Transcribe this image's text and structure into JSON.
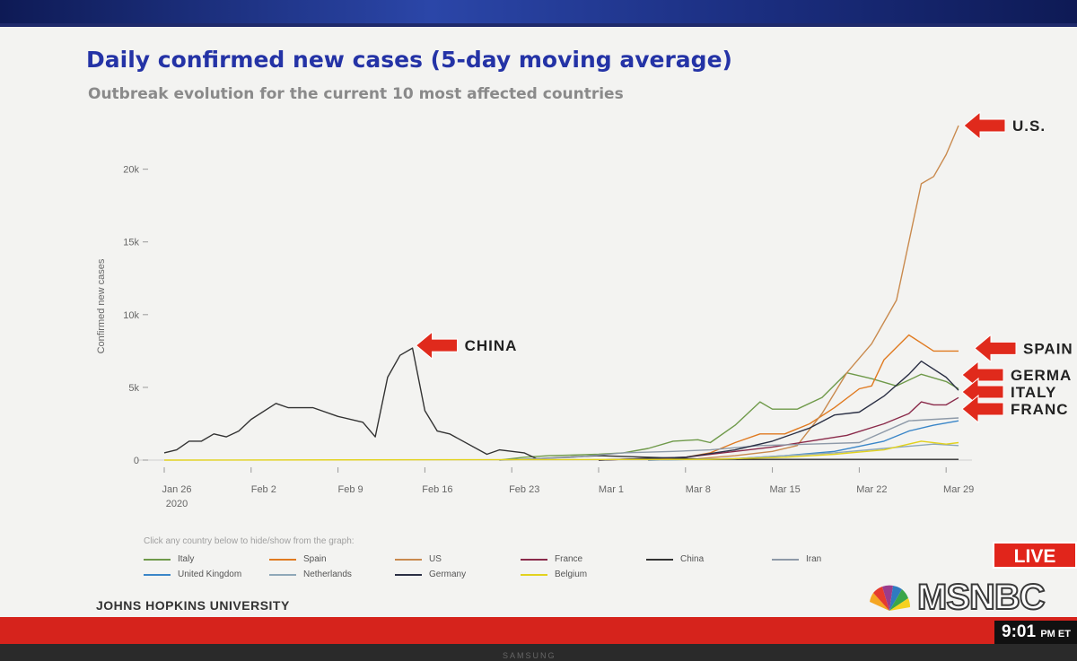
{
  "title": "Daily confirmed new cases (5-day moving average)",
  "subtitle": "Outbreak evolution for the current 10 most affected countries",
  "legend_hint": "Click any country below to hide/show from the graph:",
  "source": "JOHNS HOPKINS UNIVERSITY",
  "overlay": {
    "live": "LIVE",
    "network": "MSNBC",
    "clock_time": "9:01",
    "clock_suffix": "PM ET",
    "tv_brand": "SAMSUNG"
  },
  "annotations": [
    {
      "label": "U.S.",
      "series": "US"
    },
    {
      "label": "CHINA",
      "series": "China"
    },
    {
      "label": "SPAIN",
      "series": "Spain"
    },
    {
      "label": "GERMA",
      "series": "Germany"
    },
    {
      "label": "ITALY",
      "series": "Italy"
    },
    {
      "label": "FRANC",
      "series": "France"
    }
  ],
  "colors": {
    "title": "#2433a6",
    "subtitle": "#8a8a8a",
    "arrow": "#e02a1c",
    "live_bg": "#e1251b"
  },
  "chart_data": {
    "type": "line",
    "title": "Daily confirmed new cases (5-day moving average)",
    "subtitle": "Outbreak evolution for the current 10 most affected countries",
    "ylabel": "Confirmed new cases",
    "xlabel": "",
    "x_ticks": [
      {
        "date": "2020-01-26",
        "label": "Jan 26",
        "sublabel": "2020"
      },
      {
        "date": "2020-02-02",
        "label": "Feb 2",
        "sublabel": ""
      },
      {
        "date": "2020-02-09",
        "label": "Feb 9",
        "sublabel": ""
      },
      {
        "date": "2020-02-16",
        "label": "Feb 16",
        "sublabel": ""
      },
      {
        "date": "2020-02-23",
        "label": "Feb 23",
        "sublabel": ""
      },
      {
        "date": "2020-03-01",
        "label": "Mar 1",
        "sublabel": ""
      },
      {
        "date": "2020-03-08",
        "label": "Mar 8",
        "sublabel": ""
      },
      {
        "date": "2020-03-15",
        "label": "Mar 15",
        "sublabel": ""
      },
      {
        "date": "2020-03-22",
        "label": "Mar 22",
        "sublabel": ""
      },
      {
        "date": "2020-03-29",
        "label": "Mar 29",
        "sublabel": ""
      }
    ],
    "y_ticks": [
      {
        "value": 0,
        "label": "0"
      },
      {
        "value": 5000,
        "label": "5k"
      },
      {
        "value": 10000,
        "label": "10k"
      },
      {
        "value": 15000,
        "label": "15k"
      },
      {
        "value": 20000,
        "label": "20k"
      }
    ],
    "xlim": [
      "2020-01-26",
      "2020-03-30"
    ],
    "ylim": [
      0,
      23000
    ],
    "grid": false,
    "legend_position": "bottom",
    "series": [
      {
        "name": "Italy",
        "color": "#6f9a4a",
        "points": [
          [
            "2020-02-22",
            0
          ],
          [
            "2020-02-24",
            200
          ],
          [
            "2020-02-26",
            300
          ],
          [
            "2020-02-28",
            350
          ],
          [
            "2020-03-01",
            400
          ],
          [
            "2020-03-03",
            500
          ],
          [
            "2020-03-05",
            800
          ],
          [
            "2020-03-07",
            1300
          ],
          [
            "2020-03-09",
            1400
          ],
          [
            "2020-03-10",
            1200
          ],
          [
            "2020-03-12",
            2400
          ],
          [
            "2020-03-14",
            4000
          ],
          [
            "2020-03-15",
            3500
          ],
          [
            "2020-03-17",
            3500
          ],
          [
            "2020-03-19",
            4300
          ],
          [
            "2020-03-21",
            6000
          ],
          [
            "2020-03-23",
            5600
          ],
          [
            "2020-03-25",
            5100
          ],
          [
            "2020-03-27",
            5900
          ],
          [
            "2020-03-29",
            5400
          ],
          [
            "2020-03-30",
            4900
          ]
        ]
      },
      {
        "name": "Spain",
        "color": "#e07a20",
        "points": [
          [
            "2020-03-05",
            0
          ],
          [
            "2020-03-08",
            200
          ],
          [
            "2020-03-10",
            500
          ],
          [
            "2020-03-12",
            1200
          ],
          [
            "2020-03-14",
            1800
          ],
          [
            "2020-03-16",
            1800
          ],
          [
            "2020-03-18",
            2500
          ],
          [
            "2020-03-20",
            3600
          ],
          [
            "2020-03-22",
            4900
          ],
          [
            "2020-03-23",
            5100
          ],
          [
            "2020-03-24",
            6900
          ],
          [
            "2020-03-26",
            8600
          ],
          [
            "2020-03-28",
            7500
          ],
          [
            "2020-03-30",
            7500
          ]
        ]
      },
      {
        "name": "US",
        "color": "#c98a4e",
        "points": [
          [
            "2020-03-05",
            0
          ],
          [
            "2020-03-09",
            100
          ],
          [
            "2020-03-12",
            300
          ],
          [
            "2020-03-15",
            600
          ],
          [
            "2020-03-17",
            1000
          ],
          [
            "2020-03-19",
            3200
          ],
          [
            "2020-03-21",
            6000
          ],
          [
            "2020-03-23",
            8000
          ],
          [
            "2020-03-25",
            11000
          ],
          [
            "2020-03-27",
            19000
          ],
          [
            "2020-03-28",
            19500
          ],
          [
            "2020-03-29",
            21000
          ],
          [
            "2020-03-30",
            23000
          ]
        ]
      },
      {
        "name": "France",
        "color": "#8a2a4a",
        "points": [
          [
            "2020-03-01",
            0
          ],
          [
            "2020-03-08",
            200
          ],
          [
            "2020-03-12",
            600
          ],
          [
            "2020-03-15",
            900
          ],
          [
            "2020-03-18",
            1300
          ],
          [
            "2020-03-21",
            1700
          ],
          [
            "2020-03-24",
            2500
          ],
          [
            "2020-03-26",
            3200
          ],
          [
            "2020-03-27",
            4000
          ],
          [
            "2020-03-28",
            3800
          ],
          [
            "2020-03-29",
            3800
          ],
          [
            "2020-03-30",
            4300
          ]
        ]
      },
      {
        "name": "China",
        "color": "#333333",
        "points": [
          [
            "2020-01-26",
            500
          ],
          [
            "2020-01-27",
            700
          ],
          [
            "2020-01-28",
            1300
          ],
          [
            "2020-01-29",
            1300
          ],
          [
            "2020-01-30",
            1800
          ],
          [
            "2020-01-31",
            1600
          ],
          [
            "2020-02-01",
            2000
          ],
          [
            "2020-02-02",
            2800
          ],
          [
            "2020-02-04",
            3900
          ],
          [
            "2020-02-05",
            3600
          ],
          [
            "2020-02-07",
            3600
          ],
          [
            "2020-02-09",
            3000
          ],
          [
            "2020-02-11",
            2600
          ],
          [
            "2020-02-12",
            1600
          ],
          [
            "2020-02-13",
            5700
          ],
          [
            "2020-02-14",
            7200
          ],
          [
            "2020-02-15",
            7700
          ],
          [
            "2020-02-16",
            3400
          ],
          [
            "2020-02-17",
            2000
          ],
          [
            "2020-02-18",
            1800
          ],
          [
            "2020-02-21",
            400
          ],
          [
            "2020-02-22",
            700
          ],
          [
            "2020-02-24",
            500
          ],
          [
            "2020-02-25",
            100
          ],
          [
            "2020-03-01",
            300
          ],
          [
            "2020-03-05",
            200
          ],
          [
            "2020-03-10",
            50
          ],
          [
            "2020-03-30",
            50
          ]
        ]
      },
      {
        "name": "Iran",
        "color": "#8e9aa8",
        "points": [
          [
            "2020-02-22",
            0
          ],
          [
            "2020-02-28",
            200
          ],
          [
            "2020-03-03",
            500
          ],
          [
            "2020-03-07",
            600
          ],
          [
            "2020-03-10",
            700
          ],
          [
            "2020-03-14",
            1000
          ],
          [
            "2020-03-18",
            1100
          ],
          [
            "2020-03-22",
            1200
          ],
          [
            "2020-03-26",
            2700
          ],
          [
            "2020-03-30",
            2900
          ]
        ]
      },
      {
        "name": "United Kingdom",
        "color": "#3a86c8",
        "points": [
          [
            "2020-03-05",
            0
          ],
          [
            "2020-03-12",
            100
          ],
          [
            "2020-03-16",
            300
          ],
          [
            "2020-03-20",
            600
          ],
          [
            "2020-03-24",
            1300
          ],
          [
            "2020-03-26",
            2000
          ],
          [
            "2020-03-28",
            2400
          ],
          [
            "2020-03-30",
            2700
          ]
        ]
      },
      {
        "name": "Netherlands",
        "color": "#8fa8b8",
        "points": [
          [
            "2020-03-05",
            0
          ],
          [
            "2020-03-12",
            100
          ],
          [
            "2020-03-16",
            300
          ],
          [
            "2020-03-20",
            500
          ],
          [
            "2020-03-24",
            800
          ],
          [
            "2020-03-28",
            1100
          ],
          [
            "2020-03-30",
            1000
          ]
        ]
      },
      {
        "name": "Germany",
        "color": "#2a2f44",
        "points": [
          [
            "2020-03-01",
            0
          ],
          [
            "2020-03-08",
            200
          ],
          [
            "2020-03-12",
            700
          ],
          [
            "2020-03-15",
            1300
          ],
          [
            "2020-03-18",
            2200
          ],
          [
            "2020-03-20",
            3100
          ],
          [
            "2020-03-22",
            3300
          ],
          [
            "2020-03-24",
            4400
          ],
          [
            "2020-03-26",
            5900
          ],
          [
            "2020-03-27",
            6800
          ],
          [
            "2020-03-29",
            5700
          ],
          [
            "2020-03-30",
            4800
          ]
        ]
      },
      {
        "name": "Belgium",
        "color": "#e2d21e",
        "points": [
          [
            "2020-01-26",
            0
          ],
          [
            "2020-03-10",
            50
          ],
          [
            "2020-03-16",
            200
          ],
          [
            "2020-03-20",
            400
          ],
          [
            "2020-03-24",
            700
          ],
          [
            "2020-03-27",
            1300
          ],
          [
            "2020-03-29",
            1100
          ],
          [
            "2020-03-30",
            1200
          ]
        ]
      }
    ]
  }
}
